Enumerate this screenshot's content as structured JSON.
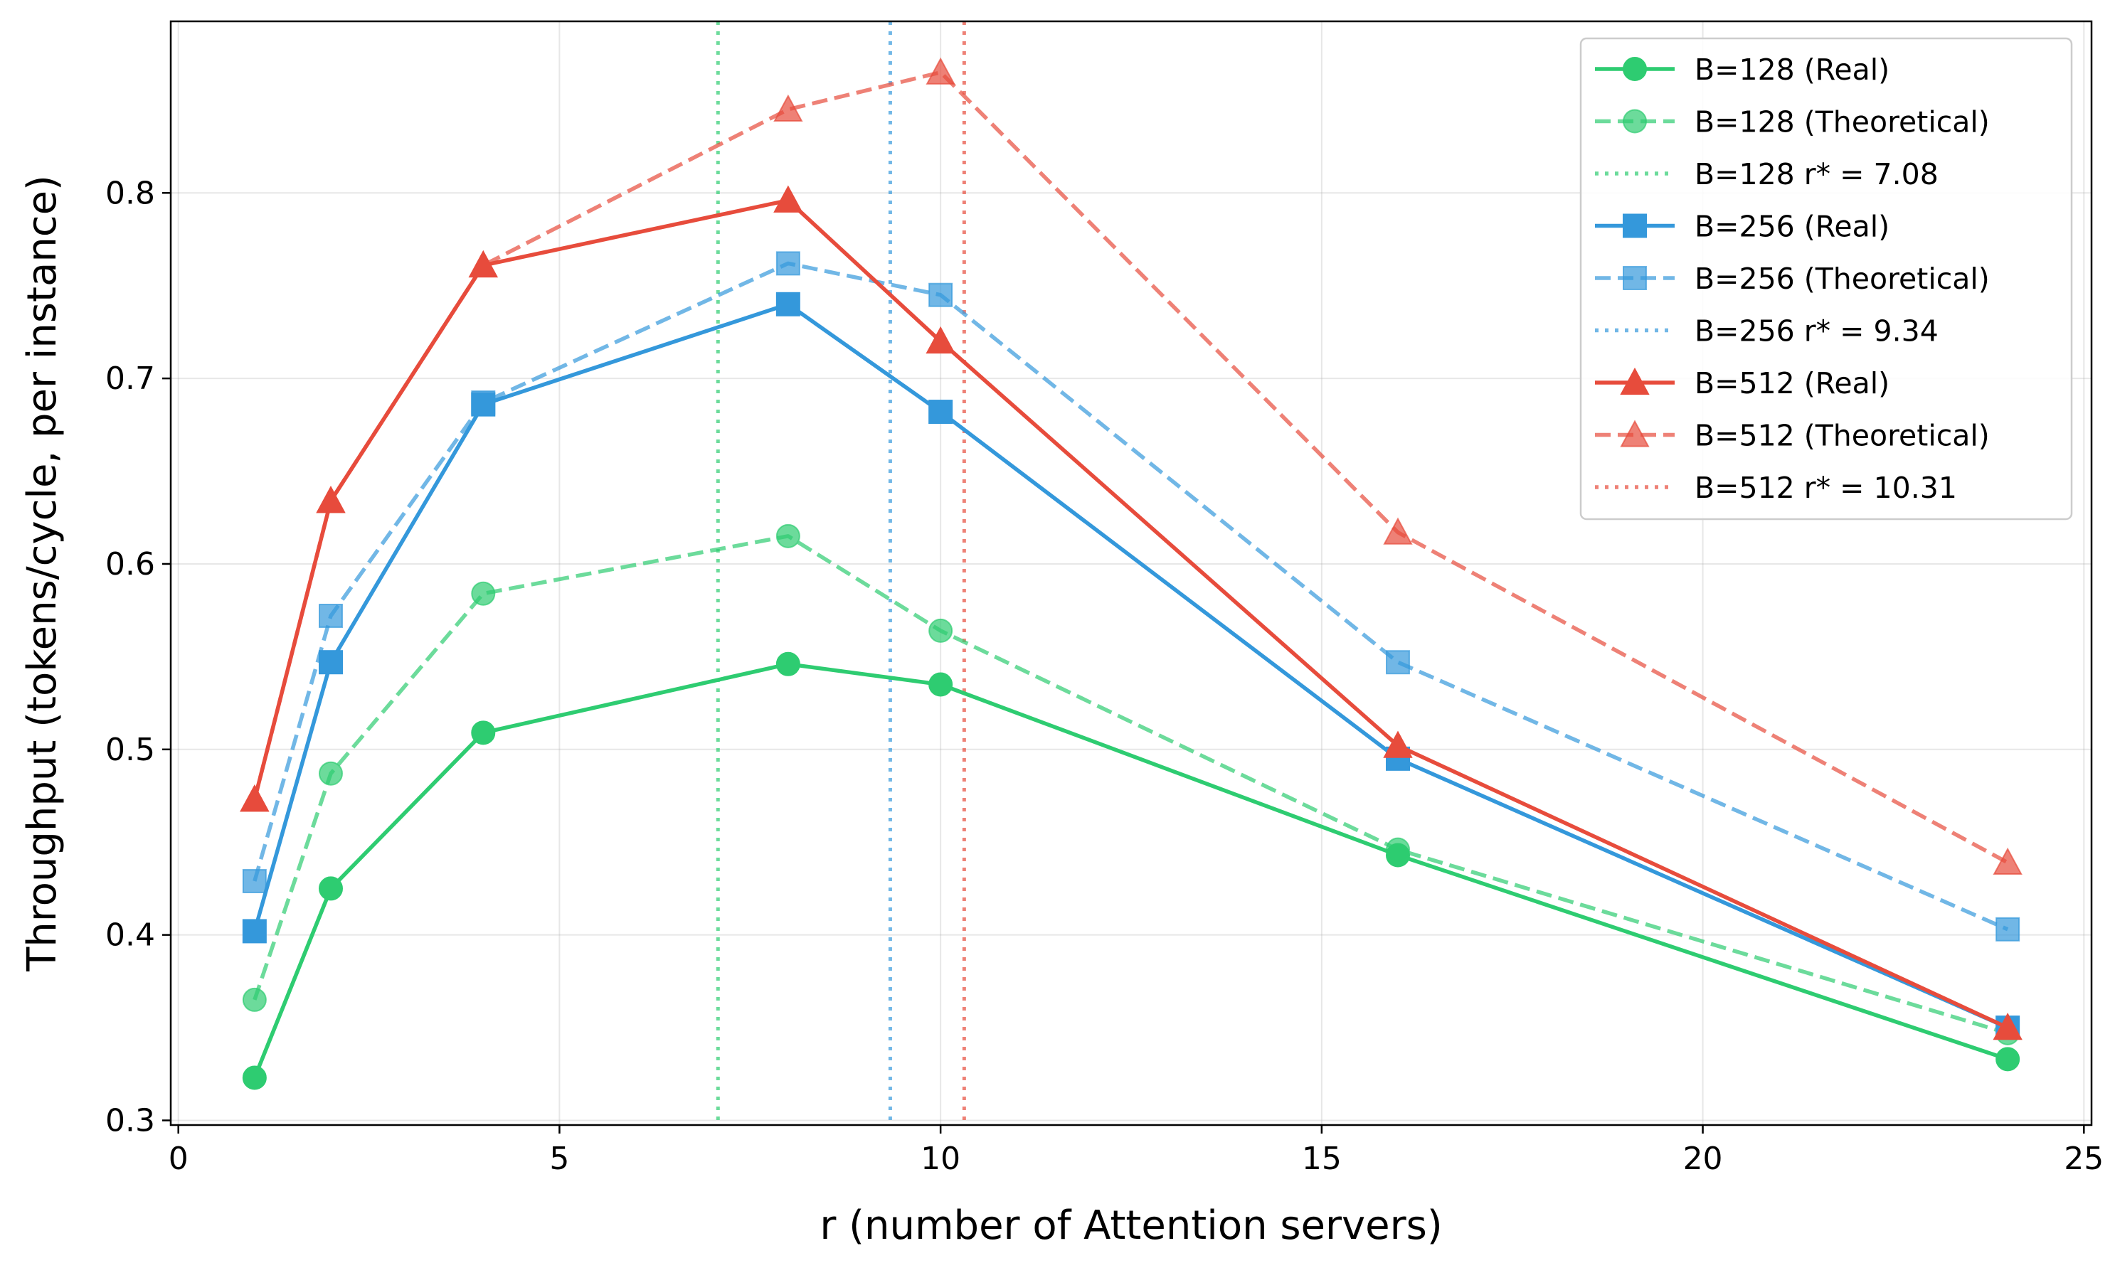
{
  "chart_data": {
    "type": "line",
    "title": "",
    "xlabel": "r (number of Attention servers)",
    "ylabel": "Throughput (tokens/cycle, per instance)",
    "xlim": [
      -0.1,
      25.1
    ],
    "ylim": [
      0.2975,
      0.8925
    ],
    "xticks": [
      0,
      5,
      10,
      15,
      20,
      25
    ],
    "yticks": [
      0.3,
      0.4,
      0.5,
      0.6,
      0.7,
      0.8
    ],
    "xtick_labels": [
      "0",
      "5",
      "10",
      "15",
      "20",
      "25"
    ],
    "ytick_labels": [
      "0.3",
      "0.4",
      "0.5",
      "0.6",
      "0.7",
      "0.8"
    ],
    "grid": true,
    "legend_position": "top-right",
    "x": [
      1,
      2,
      4,
      8,
      10,
      16,
      24
    ],
    "series": [
      {
        "name": "B=128 (Real)",
        "color": "#2ecc71",
        "style": "solid",
        "marker": "circle",
        "alpha": 1.0,
        "values": [
          0.323,
          0.425,
          0.509,
          0.546,
          0.535,
          0.443,
          0.333
        ]
      },
      {
        "name": "B=128 (Theoretical)",
        "color": "#2ecc71",
        "style": "dashed",
        "marker": "circle",
        "alpha": 0.7,
        "values": [
          0.365,
          0.487,
          0.584,
          0.615,
          0.564,
          0.446,
          0.347
        ]
      },
      {
        "name": "B=256 (Real)",
        "color": "#3498db",
        "style": "solid",
        "marker": "square",
        "alpha": 1.0,
        "values": [
          0.402,
          0.547,
          0.686,
          0.74,
          0.682,
          0.495,
          0.35
        ]
      },
      {
        "name": "B=256 (Theoretical)",
        "color": "#3498db",
        "style": "dashed",
        "marker": "square",
        "alpha": 0.7,
        "values": [
          0.429,
          0.572,
          0.687,
          0.762,
          0.745,
          0.547,
          0.403
        ]
      },
      {
        "name": "B=512 (Real)",
        "color": "#e74c3c",
        "style": "solid",
        "marker": "triangle",
        "alpha": 1.0,
        "values": [
          0.473,
          0.634,
          0.761,
          0.796,
          0.72,
          0.502,
          0.35
        ]
      },
      {
        "name": "B=512 (Theoretical)",
        "color": "#e74c3c",
        "style": "dashed",
        "marker": "triangle",
        "alpha": 0.7,
        "values": [
          0.473,
          0.634,
          0.761,
          0.845,
          0.865,
          0.617,
          0.439
        ]
      }
    ],
    "vlines": [
      {
        "name": "B=128 r* = 7.08",
        "x": 7.08,
        "color": "#2ecc71"
      },
      {
        "name": "B=256 r* = 9.34",
        "x": 9.34,
        "color": "#3498db"
      },
      {
        "name": "B=512 r* = 10.31",
        "x": 10.31,
        "color": "#e74c3c"
      }
    ],
    "legend": [
      {
        "kind": "series",
        "index": 0
      },
      {
        "kind": "series",
        "index": 1
      },
      {
        "kind": "vline",
        "index": 0
      },
      {
        "kind": "series",
        "index": 2
      },
      {
        "kind": "series",
        "index": 3
      },
      {
        "kind": "vline",
        "index": 1
      },
      {
        "kind": "series",
        "index": 4
      },
      {
        "kind": "series",
        "index": 5
      },
      {
        "kind": "vline",
        "index": 2
      }
    ]
  }
}
